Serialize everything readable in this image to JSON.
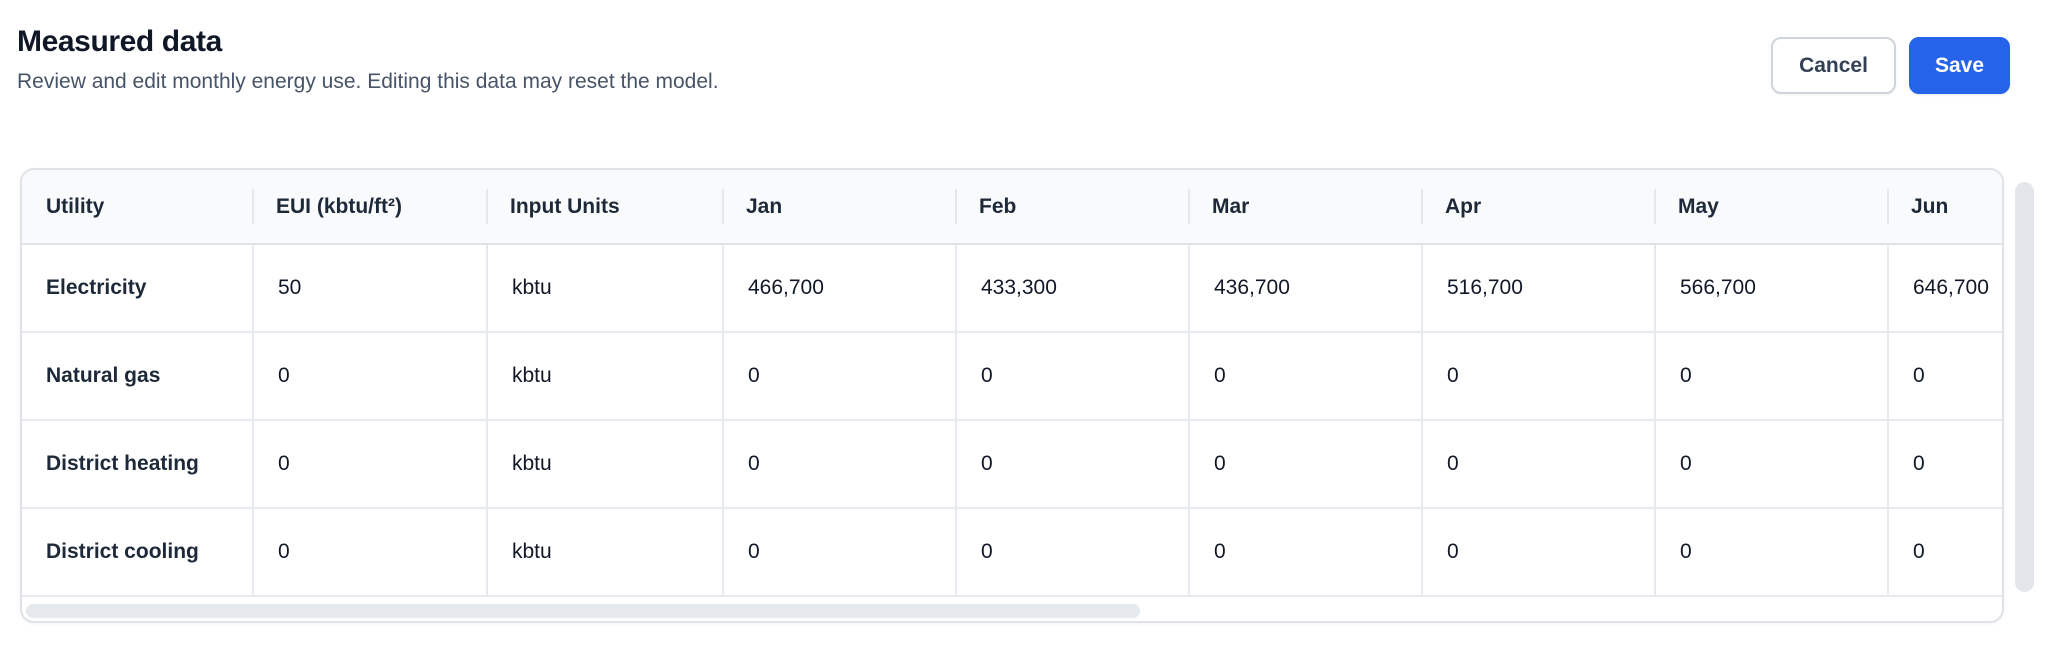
{
  "header": {
    "title": "Measured data",
    "subtitle": "Review and edit monthly energy use. Editing this data may reset the model.",
    "cancel_label": "Cancel",
    "save_label": "Save"
  },
  "colors": {
    "accent_blue": "#2563eb",
    "card_border": "#dfe3e8",
    "grid_line": "#e7ebf0",
    "header_bg": "#f9fafb",
    "title_text": "#101828",
    "subtitle_text": "#475467"
  },
  "table": {
    "columns": [
      "Utility",
      "EUI (kbtu/ft²)",
      "Input Units",
      "Jan",
      "Feb",
      "Mar",
      "Apr",
      "May",
      "Jun"
    ],
    "rows": [
      {
        "cells": [
          "Electricity",
          "50",
          "kbtu",
          "466,700",
          "433,300",
          "436,700",
          "516,700",
          "566,700",
          "646,700"
        ]
      },
      {
        "cells": [
          "Natural gas",
          "0",
          "kbtu",
          "0",
          "0",
          "0",
          "0",
          "0",
          "0"
        ]
      },
      {
        "cells": [
          "District heating",
          "0",
          "kbtu",
          "0",
          "0",
          "0",
          "0",
          "0",
          "0"
        ]
      },
      {
        "cells": [
          "District cooling",
          "0",
          "kbtu",
          "0",
          "0",
          "0",
          "0",
          "0",
          "0"
        ]
      }
    ]
  }
}
